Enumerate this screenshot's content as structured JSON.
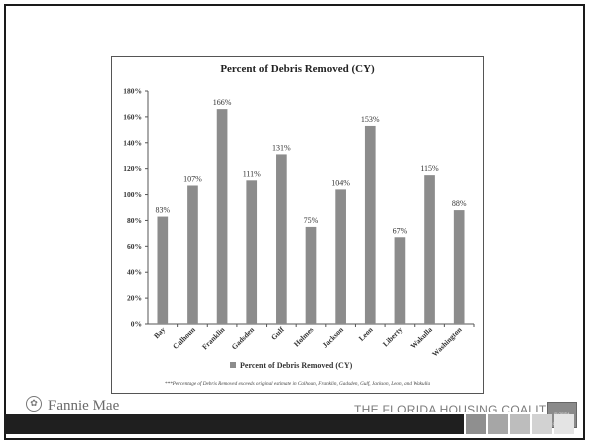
{
  "chart_data": {
    "type": "bar",
    "title": "Percent of Debris Removed (CY)",
    "categories": [
      "Bay",
      "Calhoun",
      "Franklin",
      "Gadsden",
      "Gulf",
      "Holmes",
      "Jackson",
      "Leon",
      "Liberty",
      "Wakulla",
      "Washington"
    ],
    "series": [
      {
        "name": "Percent of Debris Removed (CY)",
        "values": [
          83,
          107,
          166,
          111,
          131,
          75,
          104,
          153,
          67,
          115,
          88
        ],
        "data_labels": [
          "83%",
          "107%",
          "166%",
          "111%",
          "131%",
          "75%",
          "104%",
          "153%",
          "67%",
          "115%",
          "88%"
        ]
      }
    ],
    "yticks": [
      "0%",
      "20%",
      "40%",
      "60%",
      "80%",
      "100%",
      "120%",
      "140%",
      "160%",
      "180%"
    ],
    "ylim": [
      0,
      180
    ],
    "grid": false,
    "legend_position": "bottom",
    "footnote": "***Percentage of Debris Removed exceeds original estimate in Calhoun, Franklin, Gadsden, Gulf, Jackson, Leon, and Wakulla",
    "bar_color": "#8c8c8c"
  },
  "footer": {
    "left_logo_text": "Fannie Mae",
    "right_logo_text": "THE FLORIDA HOUSING COALITION",
    "right_logo_badge": "FLORIDA HOUSING COALITION",
    "block_colors": [
      "#8f8f8f",
      "#a6a6a6",
      "#bdbdbd",
      "#d2d2d2",
      "#e4e4e4"
    ]
  }
}
